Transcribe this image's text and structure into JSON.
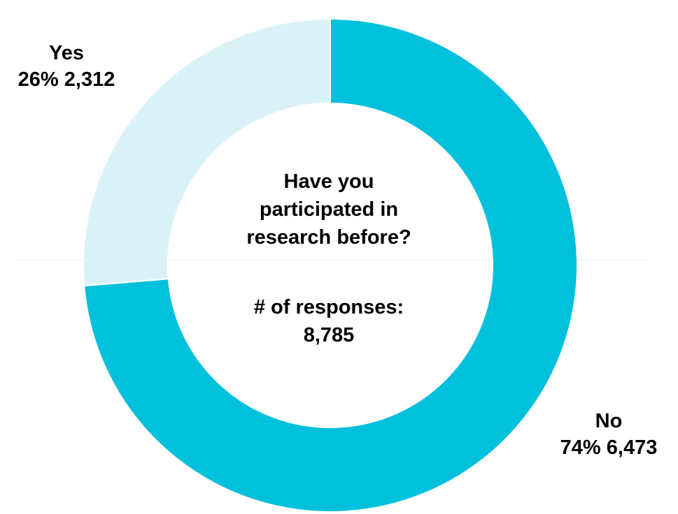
{
  "chart_data": {
    "type": "pie",
    "variant": "donut",
    "center_title": "Have you participated in research before?",
    "center_title_lines": [
      "Have you",
      "participated in",
      "research before?"
    ],
    "total_label": "# of responses:",
    "total_value": "8,785",
    "slices": [
      {
        "name": "No",
        "value": 6473,
        "percent": 74,
        "percent_label": "74%",
        "value_label": "6,473",
        "color": "#00c0dc"
      },
      {
        "name": "Yes",
        "value": 2312,
        "percent": 26,
        "percent_label": "26%",
        "value_label": "2,312",
        "color": "#d9f2f8"
      }
    ],
    "start_angle_deg": 0,
    "direction": "clockwise",
    "legend": "none"
  }
}
